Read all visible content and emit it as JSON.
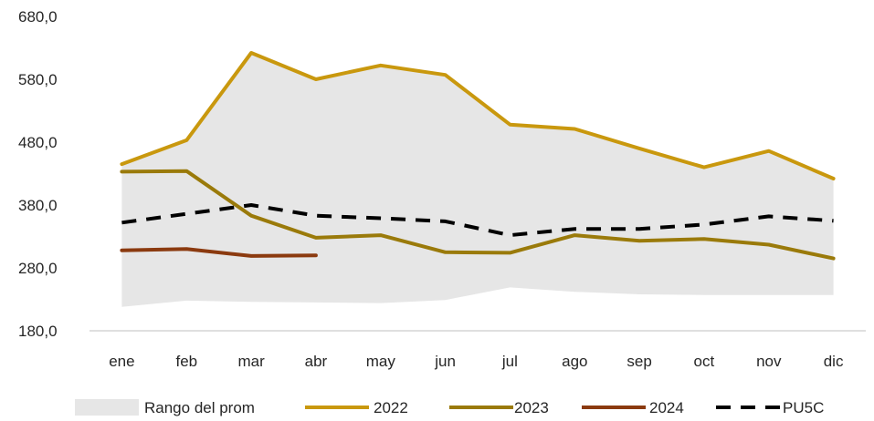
{
  "chart_data": {
    "type": "line",
    "title": "",
    "xlabel": "",
    "ylabel": "",
    "ylim": [
      180,
      680
    ],
    "yticks": [
      "680,0",
      "580,0",
      "480,0",
      "380,0",
      "280,0",
      "180,0"
    ],
    "categories": [
      "ene",
      "feb",
      "mar",
      "abr",
      "may",
      "jun",
      "jul",
      "ago",
      "sep",
      "oct",
      "nov",
      "dic"
    ],
    "grid": false,
    "legend_position": "bottom",
    "range": {
      "name": "Rango del prom",
      "color": "#e6e6e6",
      "low": [
        218,
        228,
        226,
        225,
        224,
        229,
        249,
        242,
        238,
        237,
        237,
        237
      ],
      "high": [
        445,
        483,
        622,
        580,
        602,
        587,
        508,
        501,
        470,
        440,
        466,
        422
      ]
    },
    "series": [
      {
        "name": "2022",
        "color": "#c9980e",
        "dashed": false,
        "values": [
          445,
          483,
          622,
          580,
          602,
          587,
          508,
          501,
          470,
          440,
          466,
          422
        ]
      },
      {
        "name": "2023",
        "color": "#9a7a0a",
        "dashed": false,
        "values": [
          433,
          434,
          363,
          328,
          332,
          305,
          304,
          332,
          323,
          326,
          317,
          295
        ]
      },
      {
        "name": "2024",
        "color": "#8b3a0f",
        "dashed": false,
        "values": [
          308,
          310,
          299,
          300,
          null,
          null,
          null,
          null,
          null,
          null,
          null,
          null
        ]
      },
      {
        "name": "PU5C",
        "color": "#000000",
        "dashed": true,
        "values": [
          352,
          366,
          380,
          363,
          359,
          354,
          332,
          342,
          342,
          349,
          362,
          355
        ]
      }
    ]
  }
}
